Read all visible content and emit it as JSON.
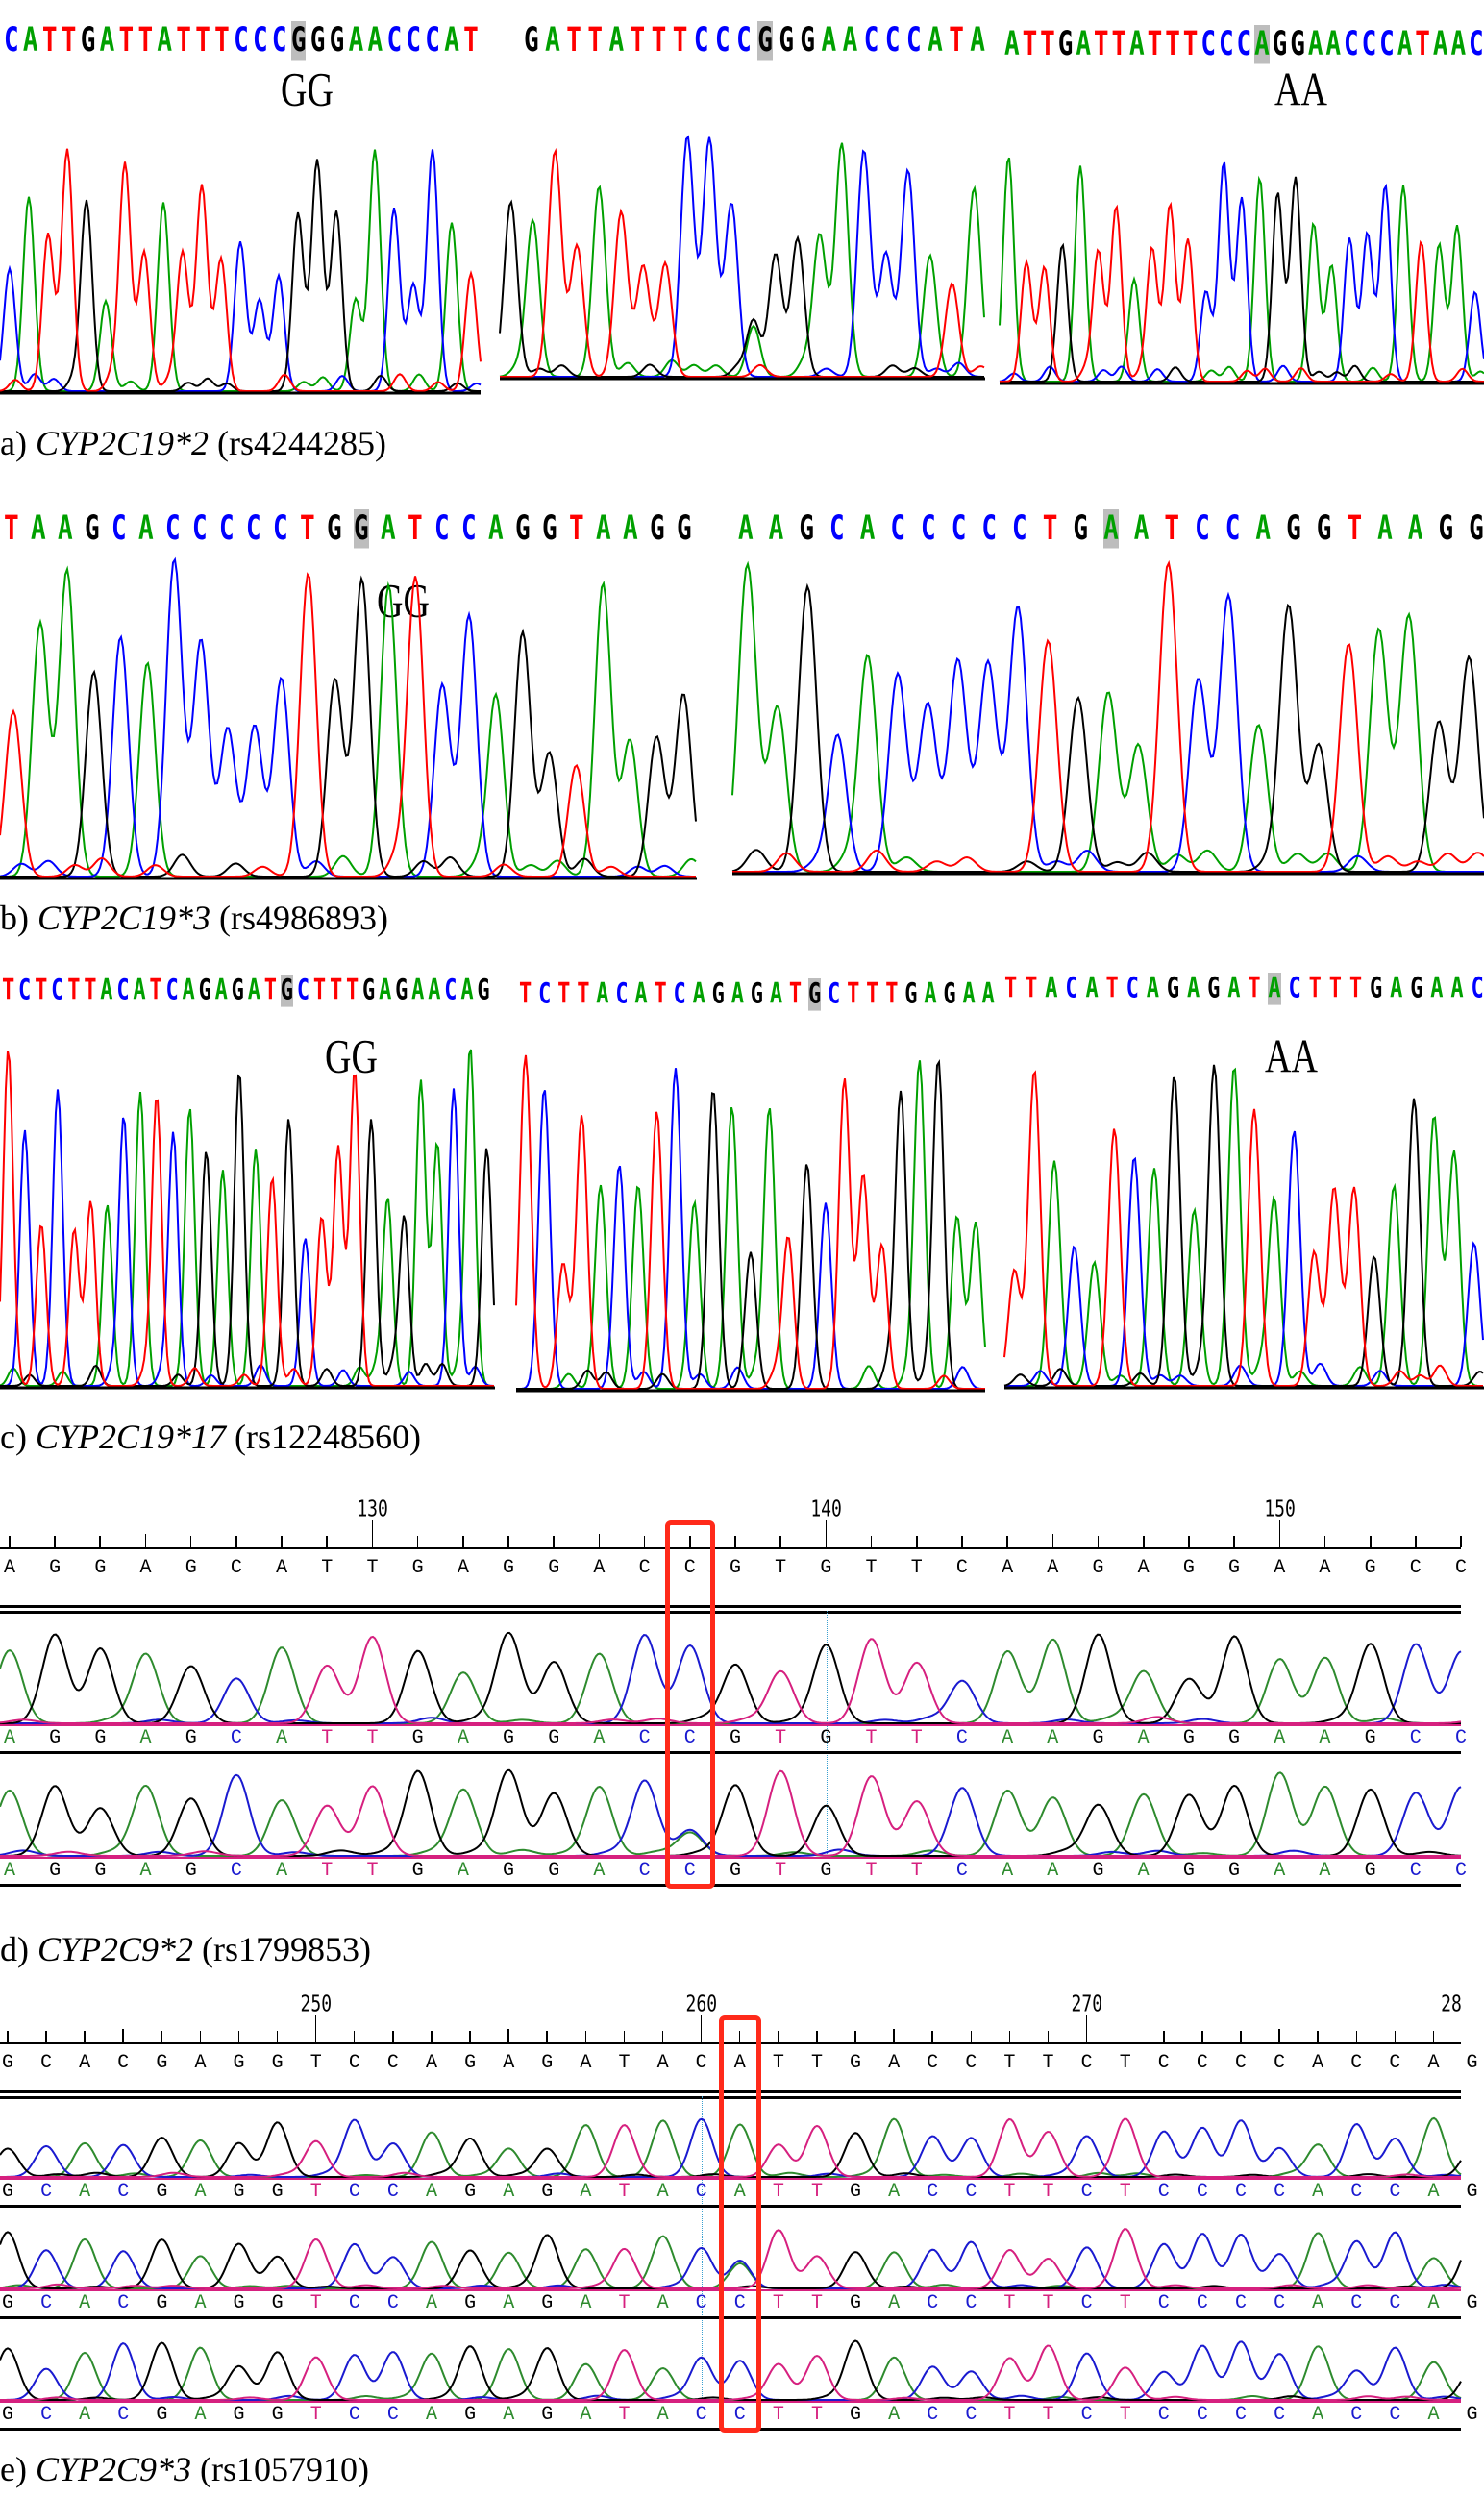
{
  "colors": {
    "A": "#00a000",
    "C": "#0000ff",
    "G": "#000000",
    "T": "#ff0000",
    "A2": "#2e8b2e",
    "C2": "#1a1ad0",
    "G2": "#000000",
    "T2": "#d6207f",
    "box": "#ff2a1a"
  },
  "panel_a": {
    "seqs": [
      {
        "text": "CATTGATTATTTCCCGGGAACCCAT",
        "highlight": 15
      },
      {
        "text": "GATTATTTCCCGGGAACCCATA",
        "highlight": 11
      },
      {
        "text": "ATTGATTATTTCCCAGGAACCCATAAC",
        "highlight": 14
      }
    ],
    "genotypes": [
      "GG",
      "AA"
    ],
    "caption": {
      "prefix": "a)",
      "gene": "CYP2C19*2",
      "rsid": "(rs4244285)"
    }
  },
  "panel_b": {
    "seqs": [
      {
        "text": "TAAGCACCCCCTGGATCCAGGTAAGG",
        "highlight": 13
      },
      {
        "text": "AAGCACCCCCTGAATCCAGGTAAGG",
        "highlight": 12
      }
    ],
    "genotypes": [
      "GG"
    ],
    "caption": {
      "prefix": "b)",
      "gene": "CYP2C19*3",
      "rsid": "(rs4986893)"
    }
  },
  "panel_c": {
    "seqs": [
      {
        "text": "TCTCTTACATCAGAGATGCTTTGAGAACAG",
        "highlight": 17
      },
      {
        "text": "TCTTACATCAGAGATGCTTTGAGAA",
        "highlight": 15
      },
      {
        "text": "TTACATCAGAGATACTTTGAGAAC",
        "highlight": 13
      }
    ],
    "genotypes": [
      "GG",
      "AA"
    ],
    "caption": {
      "prefix": "c)",
      "gene": "CYP2C19*17",
      "rsid": "(rs12248560)"
    }
  },
  "panel_d": {
    "ruler_start": 122,
    "tick_labels": [
      "130",
      "140",
      "150"
    ],
    "reference": "AGGAGCATTGAGGACCGTGTTCAAGAGGAAGCC",
    "rows": [
      "AGGAGCATTGAGGACCGTGTTCAAGAGGAAGCC",
      "AGGAGCATTGAGGACCGTGTTCAAGAGGAAGCC"
    ],
    "boxed_index": 15,
    "caption": {
      "prefix": "d)",
      "gene": "CYP2C9*2",
      "rsid": "(rs1799853)"
    }
  },
  "panel_e": {
    "ruler_start": 242,
    "tick_labels": [
      "250",
      "260",
      "270",
      "28"
    ],
    "reference": "GCACGAGGTCCAGAGATACATTGACCTTCTCCCCACCAG",
    "rows": [
      "GCACGAGGTCCAGAGATACATTGACCTTCTCCCCACCAG",
      "GCACGAGGTCCAGAGATACCTTGACCTTCTCCCCACCAG",
      "GCACGAGGTCCAGAGATACCTTGACCTTCTCCCCACCAG"
    ],
    "boxed_index": 19,
    "caption": {
      "prefix": "e)",
      "gene": "CYP2C9*3",
      "rsid": "(rs1057910)"
    }
  }
}
